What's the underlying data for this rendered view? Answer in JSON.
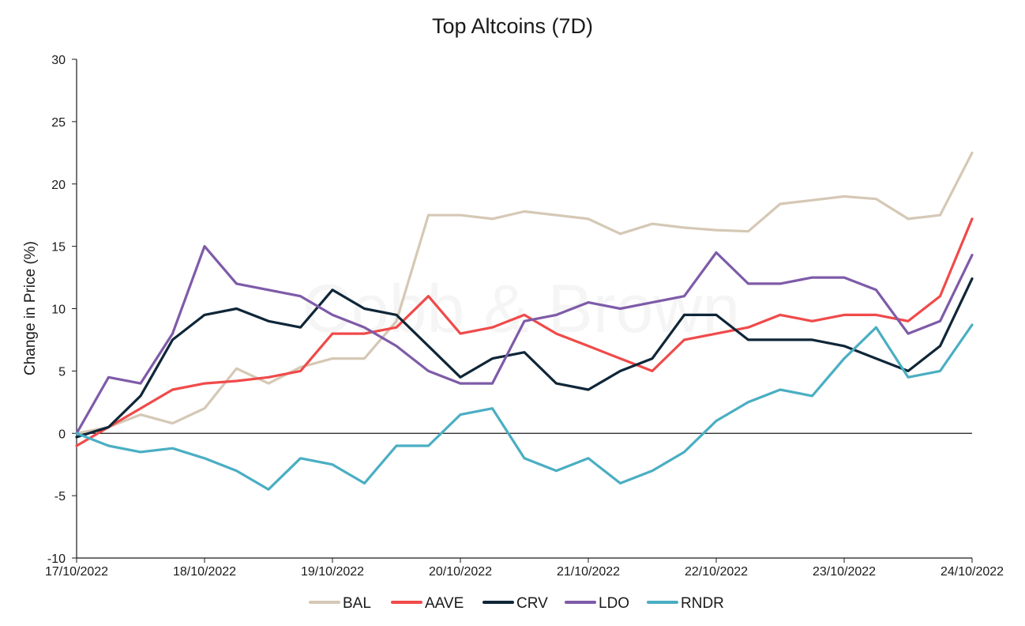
{
  "chart_data": {
    "type": "line",
    "title": "Top Altcoins (7D)",
    "xlabel": "",
    "ylabel": "Change in Price (%)",
    "watermark": "Cobb & Brown",
    "ylim": [
      -10,
      30
    ],
    "yticks": [
      -10,
      -5,
      0,
      5,
      10,
      15,
      20,
      25,
      30
    ],
    "ytick_labels": [
      "-10",
      "-5",
      "0",
      "5",
      "10",
      "15",
      "20",
      "25",
      "30"
    ],
    "xlim": [
      0,
      7
    ],
    "xticks": [
      0,
      1,
      2,
      3,
      4,
      5,
      6,
      7
    ],
    "xtick_labels": [
      "17/10/2022",
      "18/10/2022",
      "19/10/2022",
      "20/10/2022",
      "21/10/2022",
      "22/10/2022",
      "23/10/2022",
      "24/10/2022"
    ],
    "legend_position": "bottom",
    "x": [
      0,
      0.25,
      0.5,
      0.75,
      1,
      1.25,
      1.5,
      1.75,
      2,
      2.25,
      2.5,
      2.75,
      3,
      3.25,
      3.5,
      3.75,
      4,
      4.25,
      4.5,
      4.75,
      5,
      5.25,
      5.5,
      5.75,
      6,
      6.25,
      6.5,
      6.75,
      7
    ],
    "series": [
      {
        "name": "BAL",
        "color": "#d5c8b5",
        "values": [
          0,
          0.5,
          1.5,
          0.8,
          2,
          5.2,
          4,
          5.3,
          6,
          6,
          9,
          17.5,
          17.5,
          17.2,
          17.8,
          17.5,
          17.2,
          16,
          16.8,
          16.5,
          16.3,
          16.2,
          18.4,
          18.7,
          19,
          18.8,
          17.2,
          17.5,
          22.5
        ]
      },
      {
        "name": "AAVE",
        "color": "#f04a4a",
        "values": [
          -1,
          0.5,
          2,
          3.5,
          4,
          4.2,
          4.5,
          5,
          8,
          8,
          8.5,
          11,
          8,
          8.5,
          9.5,
          8,
          7,
          6,
          5,
          7.5,
          8,
          8.5,
          9.5,
          9,
          9.5,
          9.5,
          9,
          11,
          17.2
        ]
      },
      {
        "name": "CRV",
        "color": "#0f2638",
        "values": [
          -0.3,
          0.5,
          3,
          7.5,
          9.5,
          10,
          9,
          8.5,
          11.5,
          10,
          9.5,
          7,
          4.5,
          6,
          6.5,
          4,
          3.5,
          5,
          6,
          9.5,
          9.5,
          7.5,
          7.5,
          7.5,
          7,
          6,
          5,
          7,
          12.4
        ]
      },
      {
        "name": "LDO",
        "color": "#7e5ba8",
        "values": [
          0,
          4.5,
          4,
          8,
          15,
          12,
          11.5,
          11,
          9.5,
          8.5,
          7,
          5,
          4,
          4,
          9,
          9.5,
          10.5,
          10,
          10.5,
          11,
          14.5,
          12,
          12,
          12.5,
          12.5,
          11.5,
          8,
          9,
          14.3
        ]
      },
      {
        "name": "RNDR",
        "color": "#4aaec3",
        "values": [
          0,
          -1,
          -1.5,
          -1.2,
          -2,
          -3,
          -4.5,
          -2,
          -2.5,
          -4,
          -1,
          -1,
          1.5,
          2,
          -2,
          -3,
          -2,
          -4,
          -3,
          -1.5,
          1,
          2.5,
          3.5,
          3,
          6,
          8.5,
          4.5,
          5,
          8.7
        ]
      }
    ]
  }
}
